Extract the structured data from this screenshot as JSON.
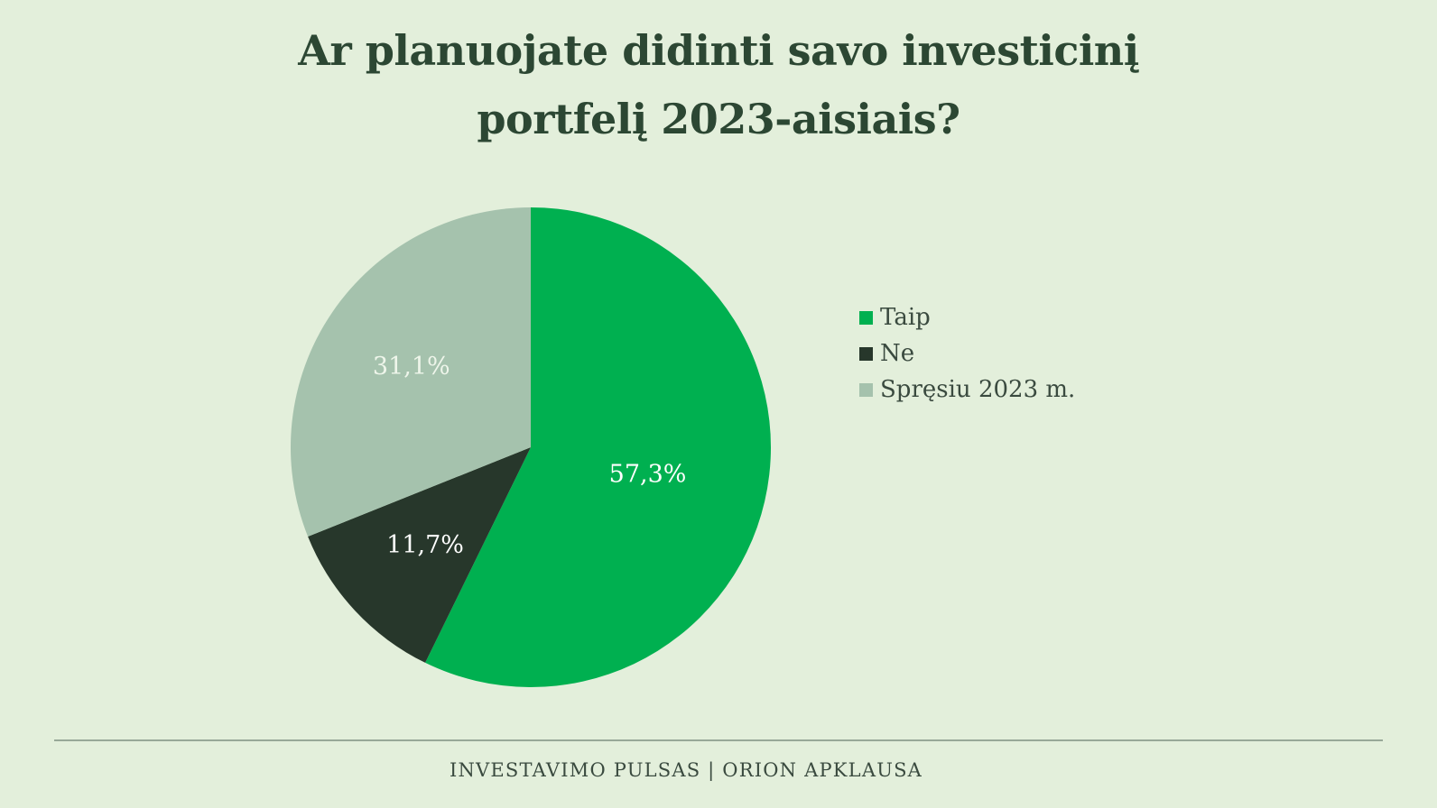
{
  "chart_data": {
    "type": "pie",
    "title_lines": [
      "Ar planuojate didinti savo investicinį",
      "portfelį 2023-aisiais?"
    ],
    "slices": [
      {
        "label": "Taip",
        "value": 57.3,
        "display": "57,3%",
        "color": "#00b050"
      },
      {
        "label": "Ne",
        "value": 11.7,
        "display": "11,7%",
        "color": "#27372b"
      },
      {
        "label": "Spręsiu 2023 m.",
        "value": 31.1,
        "display": "31,1%",
        "color": "#a5c2ad"
      }
    ],
    "legend_position": "right",
    "start_angle_deg": 0,
    "direction": "clockwise"
  },
  "colors": {
    "background": "#e3efdb",
    "title": "#2c4733",
    "label_on_dark": "#ffffff",
    "label_on_light": "#eef5ea"
  },
  "footer": {
    "text": "INVESTAVIMO PULSAS | ORION APKLAUSA"
  }
}
